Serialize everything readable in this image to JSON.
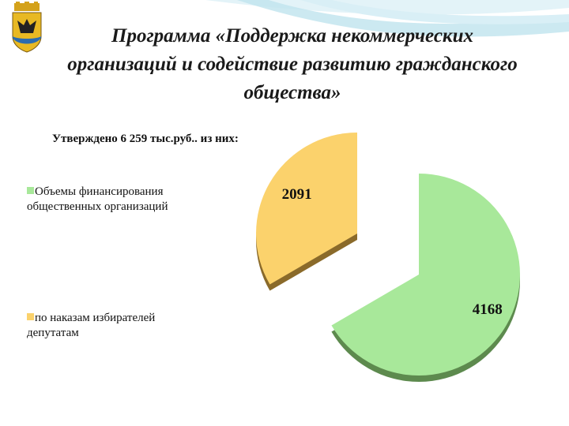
{
  "slide": {
    "title": "Программа «Поддержка некоммерческих организаций и содействие развитию гражданского общества»",
    "subtitle": "Утверждено 6 259 тыс.руб.. из них:"
  },
  "colors": {
    "green": "#a8e89a",
    "green_side": "#5d8a4e",
    "orange": "#fbd26c",
    "orange_side": "#8a6a2a",
    "swoosh": "#bfe3ee"
  },
  "chart_data": {
    "type": "pie",
    "title": "",
    "exploded": true,
    "slices": [
      {
        "name": "Объемы финансирования общественных организаций",
        "value": 4168,
        "color": "#a8e89a"
      },
      {
        "name": "по наказам избирателей депутатам",
        "value": 2091,
        "color": "#fbd26c"
      }
    ],
    "legend_position": "left"
  }
}
